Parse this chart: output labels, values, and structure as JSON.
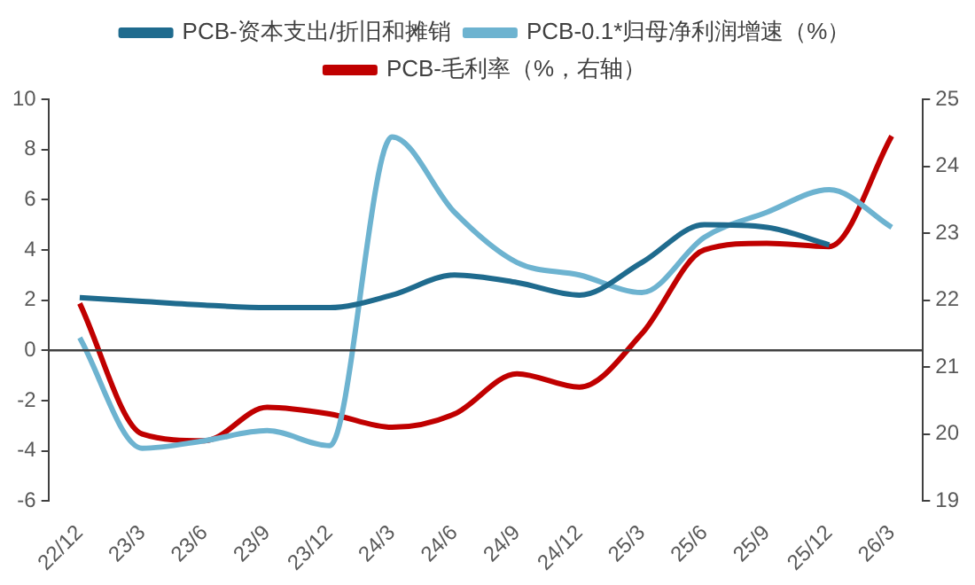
{
  "chart_data": {
    "type": "line",
    "categories": [
      "22/12",
      "23/3",
      "23/6",
      "23/9",
      "23/12",
      "24/3",
      "24/6",
      "24/9",
      "24/12",
      "25/3",
      "25/6",
      "25/9",
      "25/12",
      "26/3"
    ],
    "series": [
      {
        "name": "PCB-资本支出/折旧和摊销",
        "color": "#1f6b8e",
        "values": [
          2.1,
          1.95,
          1.8,
          1.7,
          1.7,
          2.2,
          3.0,
          2.7,
          2.2,
          3.5,
          5.0,
          4.9,
          4.2,
          null
        ]
      },
      {
        "name": "PCB-0.1*归母净利润增速（%）",
        "color": "#6db3d0",
        "values": [
          0.5,
          -3.9,
          -3.6,
          -3.2,
          -3.8,
          8.5,
          5.5,
          3.5,
          3.0,
          2.3,
          4.5,
          5.5,
          6.4,
          4.9
        ]
      },
      {
        "name": "PCB-毛利率（%，右轴）",
        "color": "#c00000",
        "axis": "y2",
        "values": [
          21.95,
          20.0,
          19.9,
          20.4,
          20.3,
          20.1,
          20.3,
          20.9,
          20.7,
          21.5,
          22.75,
          22.85,
          22.8,
          24.45
        ]
      }
    ],
    "ylim": [
      -6,
      10
    ],
    "yticks": [
      -6,
      -4,
      -2,
      0,
      2,
      4,
      6,
      8,
      10
    ],
    "y2lim": [
      19,
      25
    ],
    "y2ticks": [
      19,
      20,
      21,
      22,
      23,
      24,
      25
    ],
    "ref_lines": [
      {
        "axis": "y",
        "value": 0
      }
    ],
    "grid": false,
    "legend": "top",
    "marker": "none",
    "line_style": "solid"
  }
}
